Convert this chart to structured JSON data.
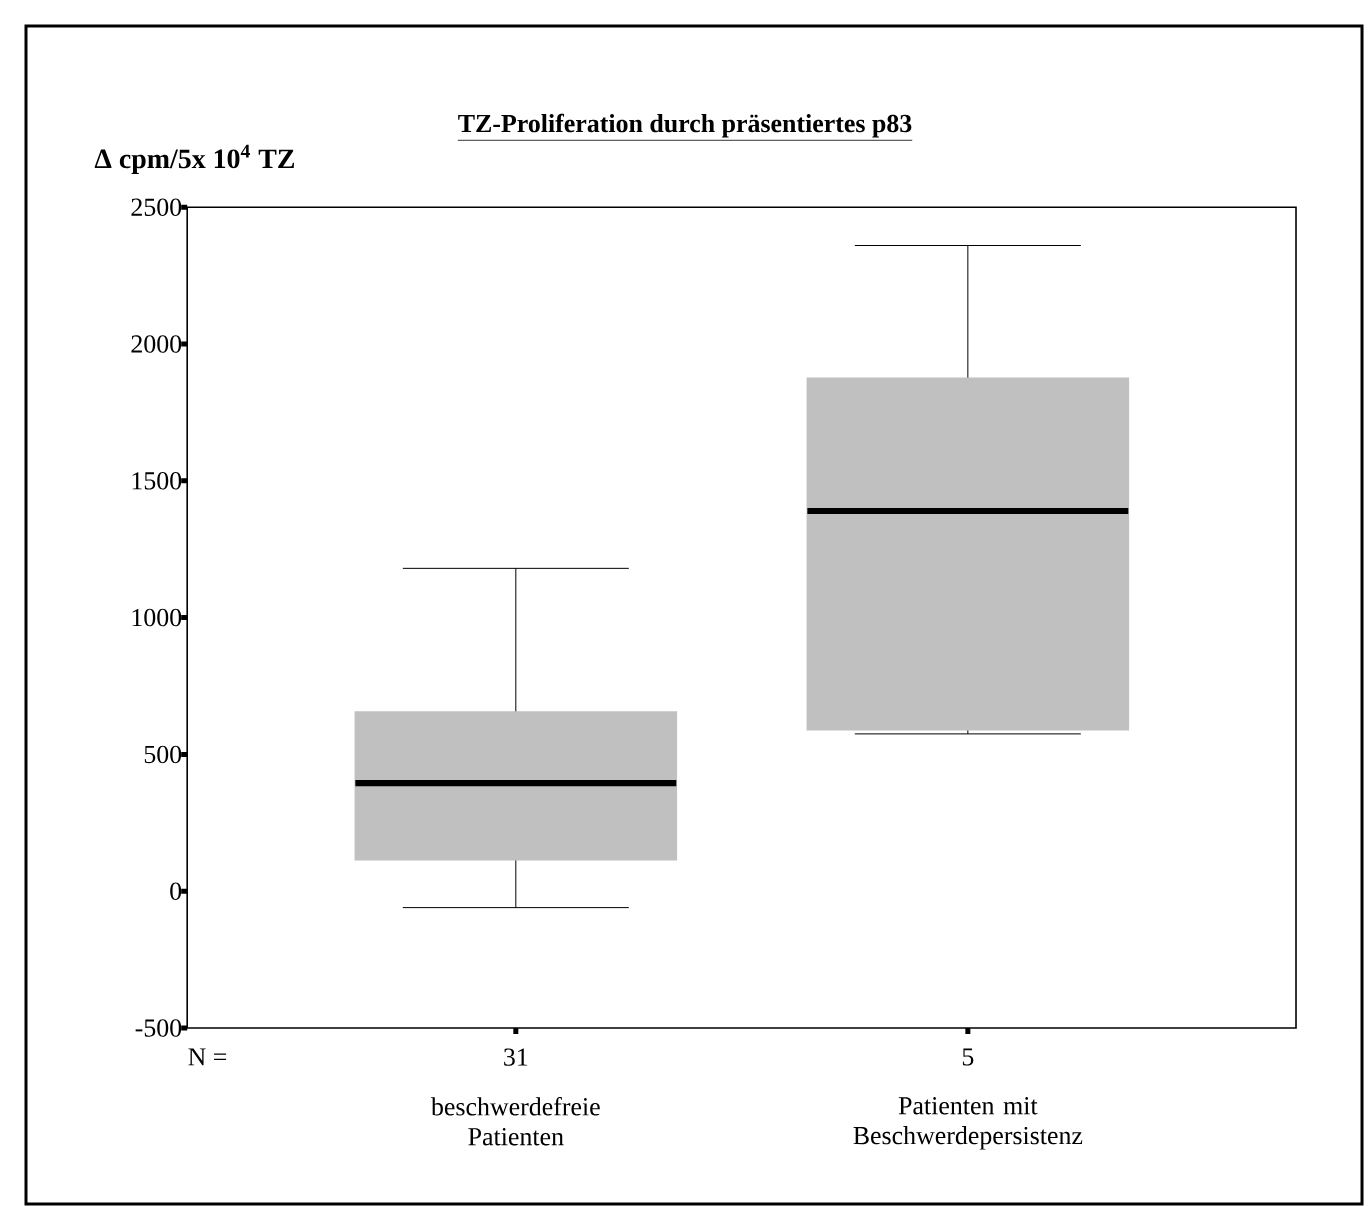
{
  "chart_data": {
    "type": "box",
    "title": "TZ-Proliferation durch präsentiertes p83",
    "ylabel": "Δ cpm/5x 10$^{4}$ TZ",
    "categories": [
      "beschwerdefreie Patienten",
      "Patienten mit Beschwerdepersistenz"
    ],
    "boxes": [
      {
        "low": -60,
        "q1": 115,
        "median": 395,
        "q3": 655,
        "high": 1180
      },
      {
        "low": 575,
        "q1": 590,
        "median": 1390,
        "q3": 1875,
        "high": 2360
      }
    ],
    "color": "#c0c0c0",
    "ylim": [
      -500,
      2500
    ],
    "yticks": [
      -500,
      0,
      500,
      1000,
      1500,
      2000,
      2500
    ],
    "annotations": [
      "N =",
      "31",
      "5"
    ]
  }
}
